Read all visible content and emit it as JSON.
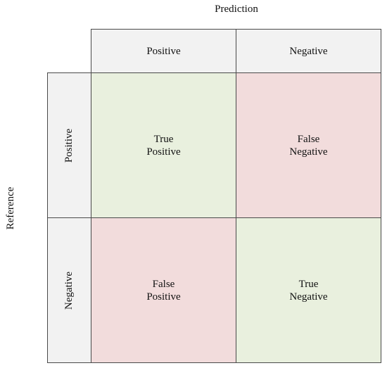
{
  "prediction_title": "Prediction",
  "reference_title": "Reference",
  "columns": [
    "Positive",
    "Negative"
  ],
  "rows": [
    "Positive",
    "Negative"
  ],
  "cells": [
    [
      {
        "line1": "True",
        "line2": "Positive",
        "color": "#e9f0de"
      },
      {
        "line1": "False",
        "line2": "Negative",
        "color": "#f2dcdc"
      }
    ],
    [
      {
        "line1": "False",
        "line2": "Positive",
        "color": "#f2dcdc"
      },
      {
        "line1": "True",
        "line2": "Negative",
        "color": "#e9f0de"
      }
    ]
  ]
}
